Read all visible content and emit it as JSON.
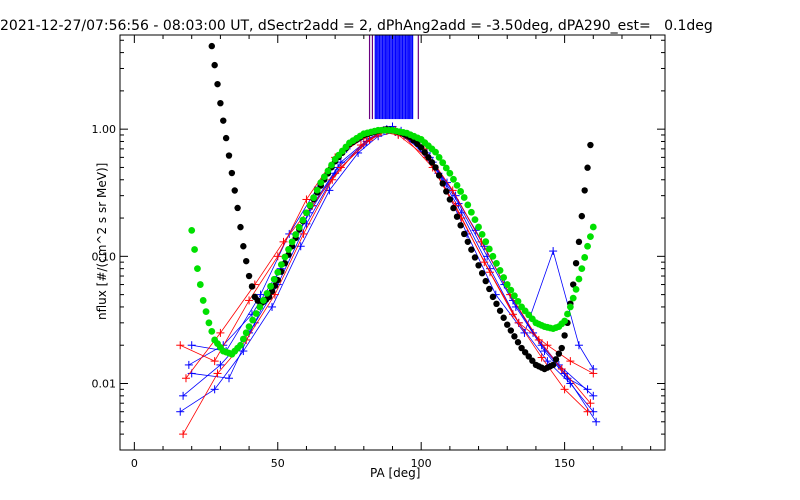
{
  "chart_data": {
    "type": "scatter",
    "title": "2021-12-27/07:56:56 - 08:03:00 UT, dSectr2add = 2, dPhAng2add = -3.50deg, dPA290_est=   0.1deg",
    "xlabel": "PA [deg]",
    "ylabel": "nflux [#/(cm^2 s sr MeV)]",
    "xlim": [
      -5,
      185
    ],
    "ylim": [
      0.003,
      5.5
    ],
    "yscale": "log",
    "xticks": [
      0,
      50,
      100,
      150
    ],
    "xtick_labels": [
      "0",
      "50",
      "100",
      "150"
    ],
    "yticks": [
      0.01,
      0.1,
      1.0
    ],
    "ytick_labels": [
      "0.01",
      "0.10",
      "1.00"
    ],
    "colors": {
      "blue": "#0000ff",
      "red": "#ff0000",
      "black": "#000000",
      "green": "#00e000",
      "purple": "#6a0080"
    },
    "series": [
      {
        "color": "black",
        "style": "thick-dots",
        "x": [
          27,
          30,
          33,
          36,
          38,
          40,
          42,
          44,
          47,
          50,
          55,
          60,
          65,
          70,
          75,
          80,
          85,
          88,
          90,
          93,
          96,
          100,
          105,
          110,
          115,
          120,
          125,
          130,
          135,
          140,
          143,
          146,
          149,
          151,
          153,
          155,
          157,
          159
        ],
        "y": [
          4.5,
          1.6,
          0.62,
          0.24,
          0.12,
          0.07,
          0.048,
          0.042,
          0.048,
          0.065,
          0.12,
          0.22,
          0.36,
          0.56,
          0.76,
          0.9,
          0.97,
          1.0,
          0.98,
          0.94,
          0.87,
          0.72,
          0.5,
          0.28,
          0.15,
          0.085,
          0.048,
          0.029,
          0.019,
          0.014,
          0.013,
          0.014,
          0.019,
          0.03,
          0.06,
          0.13,
          0.33,
          0.75
        ]
      },
      {
        "color": "green",
        "style": "dots",
        "x": [
          20,
          22,
          24,
          26,
          28,
          31,
          34,
          37,
          40,
          45,
          50,
          55,
          60,
          65,
          70,
          75,
          80,
          85,
          90,
          95,
          100,
          105,
          110,
          115,
          120,
          125,
          130,
          135,
          140,
          143,
          146,
          148,
          150,
          152,
          154,
          156,
          158,
          160
        ],
        "y": [
          0.16,
          0.08,
          0.045,
          0.03,
          0.022,
          0.018,
          0.017,
          0.02,
          0.028,
          0.045,
          0.075,
          0.13,
          0.22,
          0.38,
          0.58,
          0.78,
          0.92,
          0.98,
          0.98,
          0.93,
          0.83,
          0.66,
          0.45,
          0.29,
          0.17,
          0.1,
          0.06,
          0.04,
          0.03,
          0.028,
          0.027,
          0.028,
          0.031,
          0.04,
          0.055,
          0.08,
          0.12,
          0.17
        ]
      },
      {
        "color": "blue",
        "style": "lines-plus",
        "x": [
          20,
          33,
          42,
          52,
          62,
          72,
          82,
          88,
          94,
          104,
          114,
          124,
          134,
          144,
          152,
          160
        ],
        "y": [
          0.012,
          0.011,
          0.03,
          0.09,
          0.25,
          0.55,
          0.85,
          1.0,
          0.9,
          0.55,
          0.22,
          0.08,
          0.03,
          0.015,
          0.01,
          0.006
        ]
      },
      {
        "color": "blue",
        "style": "lines-plus",
        "x": [
          17,
          30,
          40,
          50,
          60,
          70,
          80,
          86,
          92,
          102,
          112,
          122,
          132,
          142,
          150,
          161
        ],
        "y": [
          0.008,
          0.014,
          0.025,
          0.06,
          0.18,
          0.45,
          0.75,
          0.95,
          0.92,
          0.65,
          0.3,
          0.12,
          0.045,
          0.02,
          0.012,
          0.005
        ]
      },
      {
        "color": "blue",
        "style": "lines-plus",
        "x": [
          20,
          32,
          44,
          54,
          64,
          74,
          84,
          90,
          96,
          106,
          116,
          126,
          136,
          146,
          155,
          160
        ],
        "y": [
          0.02,
          0.018,
          0.05,
          0.15,
          0.35,
          0.7,
          0.95,
          1.05,
          0.85,
          0.45,
          0.15,
          0.05,
          0.025,
          0.11,
          0.02,
          0.013
        ]
      },
      {
        "color": "blue",
        "style": "lines-plus",
        "x": [
          16,
          28,
          38,
          48,
          58,
          68,
          78,
          85,
          91,
          99,
          109,
          119,
          129,
          139,
          148,
          160
        ],
        "y": [
          0.006,
          0.009,
          0.018,
          0.04,
          0.12,
          0.33,
          0.65,
          0.88,
          0.95,
          0.75,
          0.38,
          0.16,
          0.06,
          0.025,
          0.014,
          0.008
        ]
      },
      {
        "color": "blue",
        "style": "lines-plus",
        "x": [
          19,
          31,
          41,
          51,
          61,
          71,
          81,
          87,
          93,
          103,
          113,
          123,
          133,
          143,
          151,
          158
        ],
        "y": [
          0.014,
          0.02,
          0.035,
          0.08,
          0.22,
          0.5,
          0.8,
          0.98,
          0.97,
          0.6,
          0.26,
          0.1,
          0.04,
          0.018,
          0.011,
          0.009
        ]
      },
      {
        "color": "red",
        "style": "lines-plus",
        "x": [
          16,
          28,
          40,
          50,
          60,
          70,
          80,
          86,
          92,
          102,
          112,
          122,
          132,
          142,
          150,
          158
        ],
        "y": [
          0.02,
          0.015,
          0.045,
          0.1,
          0.28,
          0.6,
          0.85,
          0.95,
          0.9,
          0.6,
          0.25,
          0.09,
          0.035,
          0.016,
          0.009,
          0.006
        ]
      },
      {
        "color": "red",
        "style": "lines-plus",
        "x": [
          17,
          29,
          39,
          49,
          59,
          69,
          79,
          85,
          91,
          101,
          111,
          121,
          131,
          141,
          149,
          159
        ],
        "y": [
          0.004,
          0.012,
          0.022,
          0.05,
          0.15,
          0.4,
          0.75,
          0.92,
          0.98,
          0.7,
          0.33,
          0.13,
          0.05,
          0.022,
          0.013,
          0.007
        ]
      },
      {
        "color": "red",
        "style": "lines-plus",
        "x": [
          18,
          30,
          42,
          52,
          62,
          72,
          82,
          88,
          94,
          104,
          114,
          124,
          134,
          144,
          152,
          160
        ],
        "y": [
          0.011,
          0.025,
          0.06,
          0.13,
          0.25,
          0.5,
          0.82,
          0.97,
          0.88,
          0.5,
          0.2,
          0.075,
          0.03,
          0.02,
          0.015,
          0.012
        ]
      }
    ],
    "vertical_bars": {
      "blue_range": [
        84,
        97
      ],
      "purple_lines": [
        82,
        83,
        99
      ]
    }
  }
}
